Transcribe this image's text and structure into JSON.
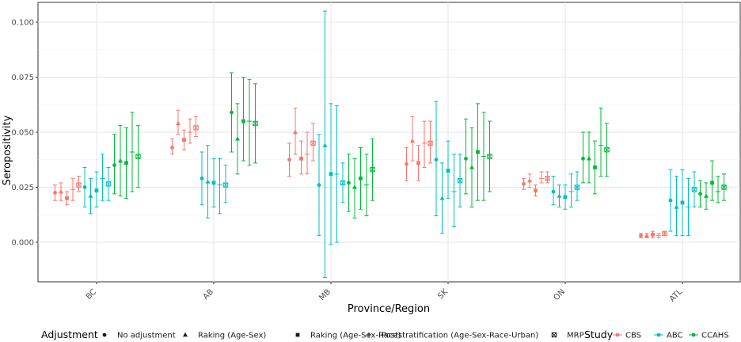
{
  "chart_data": {
    "type": "scatter",
    "xlabel": "Province/Region",
    "ylabel": "Seropositivity",
    "ylim": [
      -0.018,
      0.109
    ],
    "y_ticks": [
      "0.000",
      "0.025",
      "0.050",
      "0.075",
      "0.100"
    ],
    "y_tick_values": [
      0,
      0.025,
      0.05,
      0.075,
      0.1
    ],
    "grid": true,
    "legend_position": "bottom",
    "categories": [
      "BC",
      "AB",
      "MB",
      "SK",
      "ON",
      "ATL"
    ],
    "adjustment_legend": {
      "title": "Adjustment",
      "items": [
        {
          "label": "No adjustment",
          "shape": "circle"
        },
        {
          "label": "Raking (Age-Sex)",
          "shape": "triangle"
        },
        {
          "label": "Raking (Age-Sex-Race)",
          "shape": "square"
        },
        {
          "label": "Poststratification (Age-Sex-Race-Urban)",
          "shape": "plus"
        },
        {
          "label": "MRP",
          "shape": "boxed-x"
        }
      ]
    },
    "study_legend": {
      "title": "Study",
      "items": [
        {
          "label": "CBS",
          "color": "#F8766D"
        },
        {
          "label": "ABC",
          "color": "#00BFC4"
        },
        {
          "label": "CCAHS",
          "color": "#00BA38"
        }
      ]
    },
    "series": [
      {
        "name": "CBS",
        "color": "#F8766D",
        "points": {
          "BC": [
            [
              0.0225,
              0.019,
              0.026
            ],
            [
              0.023,
              0.019,
              0.027
            ],
            [
              0.02,
              0.017,
              0.023
            ],
            [
              0.024,
              0.019,
              0.029
            ],
            [
              0.026,
              0.023,
              0.03
            ]
          ],
          "AB": [
            [
              0.043,
              0.04,
              0.047
            ],
            [
              0.054,
              0.049,
              0.06
            ],
            [
              0.0465,
              0.042,
              0.051
            ],
            [
              0.05,
              0.045,
              0.056
            ],
            [
              0.052,
              0.048,
              0.057
            ]
          ],
          "MB": [
            [
              0.0375,
              0.03,
              0.045
            ],
            [
              0.05,
              0.04,
              0.061
            ],
            [
              0.038,
              0.031,
              0.046
            ],
            [
              0.04,
              0.031,
              0.05
            ],
            [
              0.045,
              0.037,
              0.054
            ]
          ],
          "SK": [
            [
              0.0355,
              0.028,
              0.043
            ],
            [
              0.046,
              0.037,
              0.057
            ],
            [
              0.036,
              0.028,
              0.044
            ],
            [
              0.045,
              0.034,
              0.055
            ],
            [
              0.045,
              0.036,
              0.055
            ]
          ],
          "ON": [
            [
              0.0265,
              0.024,
              0.029
            ],
            [
              0.028,
              0.025,
              0.031
            ],
            [
              0.0235,
              0.021,
              0.026
            ],
            [
              0.029,
              0.027,
              0.032
            ],
            [
              0.029,
              0.027,
              0.032
            ]
          ],
          "ATL": [
            [
              0.003,
              0.002,
              0.004
            ],
            [
              0.003,
              0.002,
              0.004
            ],
            [
              0.0035,
              0.002,
              0.005
            ],
            [
              0.003,
              0.002,
              0.004
            ],
            [
              0.004,
              0.003,
              0.005
            ]
          ]
        }
      },
      {
        "name": "ABC",
        "color": "#00BFC4",
        "points": {
          "BC": [
            [
              0.025,
              0.016,
              0.034
            ],
            [
              0.021,
              0.013,
              0.029
            ],
            [
              0.0235,
              0.016,
              0.032
            ],
            [
              0.029,
              0.019,
              0.04
            ],
            [
              0.0265,
              0.019,
              0.034
            ]
          ],
          "AB": [
            [
              0.029,
              0.017,
              0.041
            ],
            [
              0.0275,
              0.011,
              0.044
            ],
            [
              0.027,
              0.016,
              0.038
            ],
            [
              0.026,
              0.013,
              0.038
            ],
            [
              0.026,
              0.018,
              0.035
            ]
          ],
          "MB": [
            [
              0.026,
              0.003,
              0.049
            ],
            [
              0.044,
              -0.016,
              0.105
            ],
            [
              0.031,
              -0.001,
              0.063
            ],
            [
              0.031,
              0.0,
              0.062
            ],
            [
              0.027,
              0.018,
              0.036
            ]
          ],
          "SK": [
            [
              0.0375,
              0.012,
              0.064
            ],
            [
              0.02,
              0.004,
              0.036
            ],
            [
              0.0325,
              0.02,
              0.046
            ],
            [
              0.023,
              0.007,
              0.04
            ],
            [
              0.028,
              0.016,
              0.04
            ]
          ],
          "ON": [
            [
              0.023,
              0.017,
              0.03
            ],
            [
              0.021,
              0.016,
              0.026
            ],
            [
              0.0205,
              0.015,
              0.026
            ],
            [
              0.023,
              0.016,
              0.031
            ],
            [
              0.025,
              0.019,
              0.032
            ]
          ],
          "ATL": [
            [
              0.019,
              0.005,
              0.033
            ],
            [
              0.016,
              0.003,
              0.03
            ],
            [
              0.018,
              0.003,
              0.033
            ],
            [
              0.016,
              0.003,
              0.029
            ],
            [
              0.024,
              0.016,
              0.032
            ]
          ]
        }
      },
      {
        "name": "CCAHS",
        "color": "#00BA38",
        "points": {
          "BC": [
            [
              0.035,
              0.022,
              0.049
            ],
            [
              0.037,
              0.021,
              0.053
            ],
            [
              0.036,
              0.02,
              0.052
            ],
            [
              0.041,
              0.023,
              0.059
            ],
            [
              0.039,
              0.025,
              0.053
            ]
          ],
          "AB": [
            [
              0.059,
              0.041,
              0.077
            ],
            [
              0.047,
              0.031,
              0.063
            ],
            [
              0.055,
              0.037,
              0.075
            ],
            [
              0.055,
              0.035,
              0.074
            ],
            [
              0.054,
              0.036,
              0.072
            ]
          ],
          "MB": [
            [
              0.027,
              0.014,
              0.04
            ],
            [
              0.025,
              0.011,
              0.038
            ],
            [
              0.029,
              0.015,
              0.043
            ],
            [
              0.026,
              0.012,
              0.04
            ],
            [
              0.033,
              0.019,
              0.047
            ]
          ],
          "SK": [
            [
              0.038,
              0.022,
              0.056
            ],
            [
              0.034,
              0.016,
              0.052
            ],
            [
              0.041,
              0.019,
              0.063
            ],
            [
              0.039,
              0.019,
              0.059
            ],
            [
              0.039,
              0.023,
              0.055
            ]
          ],
          "ON": [
            [
              0.038,
              0.027,
              0.05
            ],
            [
              0.038,
              0.027,
              0.05
            ],
            [
              0.034,
              0.022,
              0.046
            ],
            [
              0.044,
              0.03,
              0.061
            ],
            [
              0.042,
              0.03,
              0.054
            ]
          ],
          "ATL": [
            [
              0.022,
              0.016,
              0.028
            ],
            [
              0.021,
              0.015,
              0.027
            ],
            [
              0.027,
              0.019,
              0.037
            ],
            [
              0.023,
              0.018,
              0.03
            ],
            [
              0.025,
              0.019,
              0.031
            ]
          ]
        }
      }
    ]
  }
}
